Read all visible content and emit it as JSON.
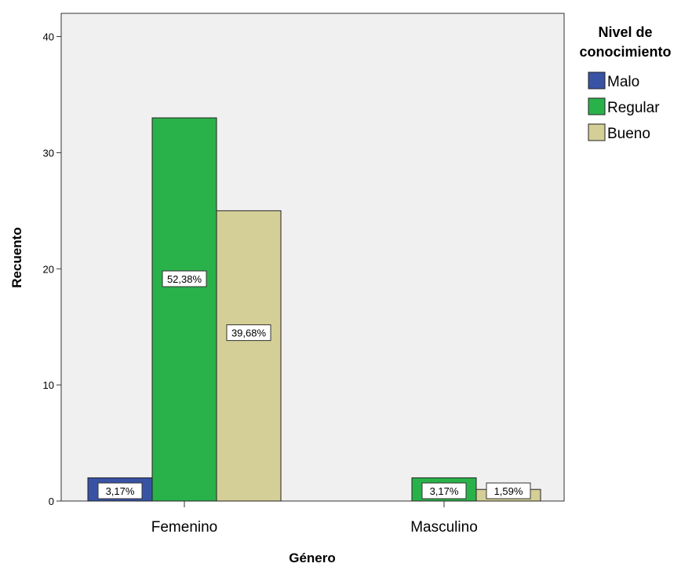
{
  "chart_data": {
    "type": "bar",
    "xlabel": "Género",
    "ylabel": "Recuento",
    "categories": [
      "Femenino",
      "Masculino"
    ],
    "ylim": [
      0,
      42
    ],
    "yticks": [
      0,
      10,
      20,
      30,
      40
    ],
    "grid": false,
    "legend": {
      "title_lines": [
        "Nivel de",
        "conocimiento"
      ],
      "placement": "right"
    },
    "series": [
      {
        "name": "Malo",
        "color": "#3953a4",
        "values": [
          2,
          0
        ],
        "labels": [
          "3,17%",
          ""
        ]
      },
      {
        "name": "Regular",
        "color": "#2ab24a",
        "values": [
          33,
          2
        ],
        "labels": [
          "52,38%",
          "3,17%"
        ]
      },
      {
        "name": "Bueno",
        "color": "#d4cf96",
        "values": [
          25,
          1
        ],
        "labels": [
          "39,68%",
          "1,59%"
        ]
      }
    ],
    "plot_background": "#f0f0f0"
  }
}
